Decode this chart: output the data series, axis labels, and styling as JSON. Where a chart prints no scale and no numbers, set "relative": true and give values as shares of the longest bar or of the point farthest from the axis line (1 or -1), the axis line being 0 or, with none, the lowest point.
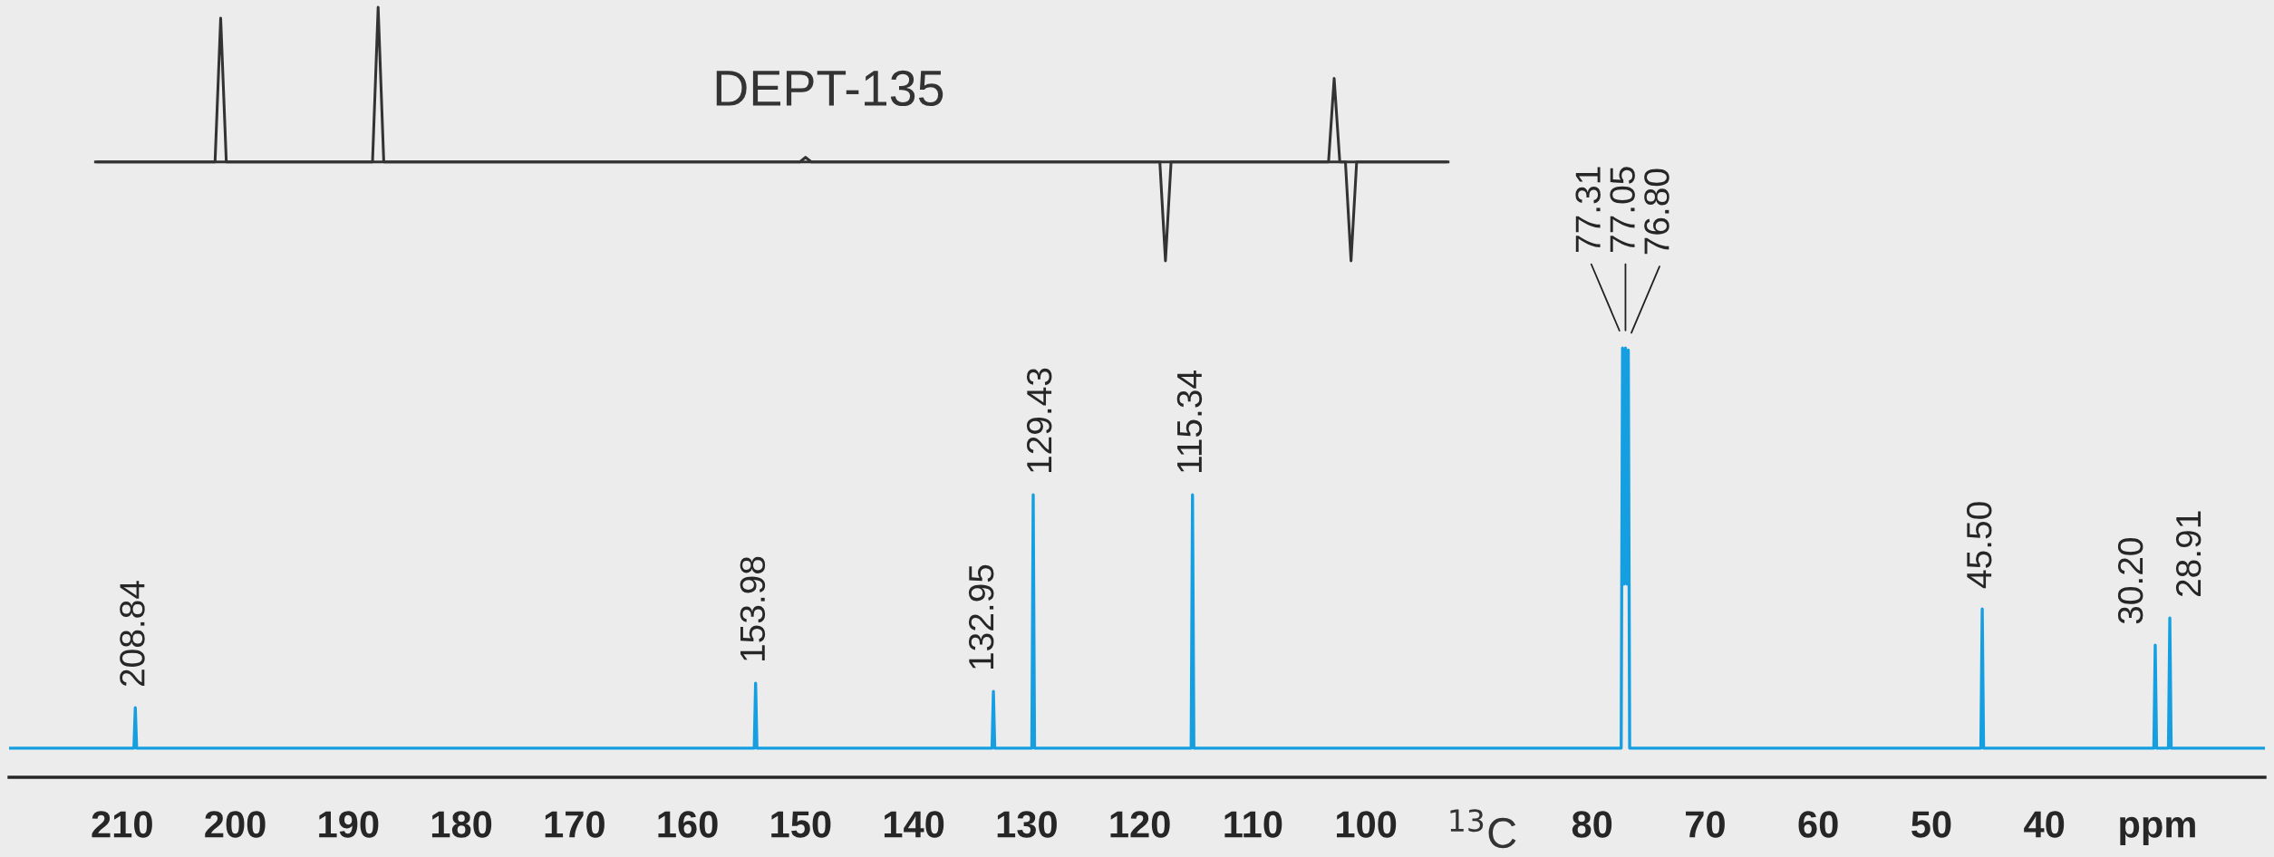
{
  "chart_data": [
    {
      "type": "line",
      "relative": true,
      "xlabel": "$^{13}$C",
      "xlim": [
        220,
        20.5
      ],
      "xticks": [
        210,
        200,
        190,
        180,
        170,
        160,
        150,
        140,
        130,
        120,
        110,
        100,
        80,
        70,
        60,
        50,
        40,
        {
          "value": 30,
          "label": "ppm"
        }
      ],
      "tick_labels": "x",
      "grid": false,
      "legend": false,
      "series": [
        {
          "color": "#169fe0",
          "x": [
            220,
            208.96,
            208.84,
            208.72,
            154.1,
            153.98,
            153.86,
            133.07,
            132.95,
            132.83,
            129.55,
            129.43,
            129.31,
            115.46,
            115.34,
            115.22,
            77.43,
            77.31,
            77.18,
            77.05,
            76.92,
            76.8,
            76.68,
            45.62,
            45.5,
            45.38,
            30.32,
            30.2,
            30.08,
            29.03,
            28.91,
            28.79,
            20.5
          ],
          "values": [
            0.068,
            0.068,
            0.162,
            0.068,
            0.068,
            0.219,
            0.068,
            0.068,
            0.2,
            0.068,
            0.068,
            0.658,
            0.068,
            0.068,
            0.658,
            0.068,
            0.068,
            1.0,
            0.45,
            1.0,
            0.45,
            0.995,
            0.068,
            0.068,
            0.392,
            0.068,
            0.068,
            0.308,
            0.068,
            0.068,
            0.371,
            0.068,
            0.068
          ]
        }
      ],
      "annotations": [
        {
          "text": "208.84",
          "x": 208.84,
          "y": 0.162
        },
        {
          "text": "153.98",
          "x": 153.98,
          "y": 0.219
        },
        {
          "text": "132.95",
          "x": 132.95,
          "y": 0.2
        },
        {
          "text": "129.43",
          "x": 129.43,
          "y": 0.658
        },
        {
          "text": "115.34",
          "x": 115.34,
          "y": 0.658
        },
        {
          "text": "77.31",
          "x": 77.31,
          "y": 1.0
        },
        {
          "text": "77.05",
          "x": 77.05,
          "y": 1.0
        },
        {
          "text": "76.80",
          "x": 76.8,
          "y": 0.995
        },
        {
          "text": "45.50",
          "x": 45.5,
          "y": 0.392
        },
        {
          "text": "30.20",
          "x": 30.2,
          "y": 0.308
        },
        {
          "text": "28.91",
          "x": 28.91,
          "y": 0.371
        }
      ]
    },
    {
      "type": "line",
      "relative": true,
      "title": "DEPT-135",
      "tick_labels": false,
      "grid": false,
      "legend": false,
      "categories": [
        null,
        null,
        null,
        null,
        null,
        null,
        null,
        null,
        null,
        null,
        null,
        null,
        null,
        null,
        null,
        null,
        null,
        null,
        null,
        null,
        null,
        null,
        null,
        null,
        null,
        null,
        null,
        null,
        null,
        null,
        null,
        null,
        null,
        null,
        null,
        null,
        null,
        null,
        null,
        null,
        null,
        null,
        null,
        null,
        null,
        null,
        null,
        null,
        null,
        null,
        null,
        null,
        null,
        null,
        null,
        null,
        null,
        null,
        null,
        null,
        null,
        null,
        null,
        null,
        null,
        null,
        null,
        null,
        null,
        null,
        null,
        null,
        null,
        null,
        null,
        null,
        null,
        null,
        null,
        null,
        null,
        null,
        null,
        null,
        null,
        null,
        null,
        null,
        null,
        null,
        null,
        null,
        null,
        null,
        null,
        null,
        null,
        null,
        null,
        null,
        null,
        null,
        null,
        null,
        null,
        null,
        null,
        null,
        null,
        null,
        null,
        null,
        null,
        null,
        null,
        null,
        null,
        null,
        null,
        null,
        null,
        null,
        null,
        null,
        null,
        null,
        null,
        null,
        null,
        null,
        null,
        null,
        null,
        null,
        null,
        null,
        null,
        null,
        null,
        null,
        null,
        null,
        null,
        null,
        null,
        null,
        null,
        null,
        null,
        null,
        null,
        null,
        null,
        null,
        null,
        null,
        null,
        null,
        null,
        null,
        null,
        null,
        null,
        null,
        null,
        null,
        null,
        null,
        null,
        null,
        null,
        null,
        null,
        null,
        null,
        null,
        null,
        null,
        null,
        null,
        null,
        null,
        null,
        null,
        null,
        null,
        null,
        null,
        null,
        null,
        null,
        null,
        null,
        null,
        null,
        null,
        null,
        null,
        null,
        null,
        null,
        null,
        null,
        null,
        null,
        null,
        null,
        null,
        null,
        null,
        null,
        null,
        null,
        null,
        null,
        null,
        null,
        null,
        null,
        null,
        null,
        null,
        null,
        null,
        null,
        null,
        null,
        null,
        null,
        null,
        null,
        null,
        null,
        null,
        null,
        null,
        null,
        null,
        null,
        null,
        null
      ],
      "series": [
        {
          "color": "#333333",
          "values": [
            0,
            0,
            0,
            0,
            0,
            0,
            0,
            0,
            0,
            0,
            0,
            0,
            0,
            0,
            0,
            0,
            0,
            0,
            0,
            0,
            0,
            0,
            0.93,
            0,
            0,
            0,
            0,
            0,
            0,
            0,
            0,
            0,
            0,
            0,
            0,
            0,
            0,
            0,
            0,
            0,
            0,
            0,
            0,
            0,
            0,
            0,
            0,
            0,
            0,
            0,
            1.0,
            0,
            0,
            0,
            0,
            0,
            0,
            0,
            0,
            0,
            0,
            0,
            0,
            0,
            0,
            0,
            0,
            0,
            0,
            0,
            0,
            0,
            0,
            0,
            0,
            0,
            0,
            0,
            0,
            0,
            0,
            0,
            0,
            0,
            0,
            0,
            0,
            0,
            0,
            0,
            0,
            0,
            0,
            0,
            0,
            0,
            0,
            0,
            0,
            0,
            0,
            0,
            0,
            0,
            0,
            0,
            0,
            0,
            0,
            0,
            0,
            0,
            0,
            0,
            0,
            0,
            0,
            0,
            0,
            0,
            0,
            0,
            0,
            0,
            0,
            0,
            0.03,
            0,
            0,
            0,
            0,
            0,
            0,
            0,
            0,
            0,
            0,
            0,
            0,
            0,
            0,
            0,
            0,
            0,
            0,
            0,
            0,
            0,
            0,
            0,
            0,
            0,
            0,
            0,
            0,
            0,
            0,
            0,
            0,
            0,
            0,
            0,
            0,
            0,
            0,
            0,
            0,
            0,
            0,
            0,
            0,
            0,
            0,
            0,
            0,
            0,
            0,
            0,
            0,
            0,
            0,
            0,
            0,
            0,
            0,
            0,
            0,
            0,
            0,
            0,
            -0.64,
            0,
            0,
            0,
            0,
            0,
            0,
            0,
            0,
            0,
            0,
            0,
            0,
            0,
            0,
            0,
            0,
            0,
            0,
            0,
            0,
            0,
            0,
            0,
            0,
            0,
            0,
            0,
            0,
            0,
            0.54,
            0,
            0,
            -0.64,
            0,
            0,
            0,
            0,
            0,
            0,
            0,
            0,
            0,
            0,
            0,
            0,
            0,
            0,
            0,
            0,
            0
          ]
        }
      ]
    }
  ]
}
